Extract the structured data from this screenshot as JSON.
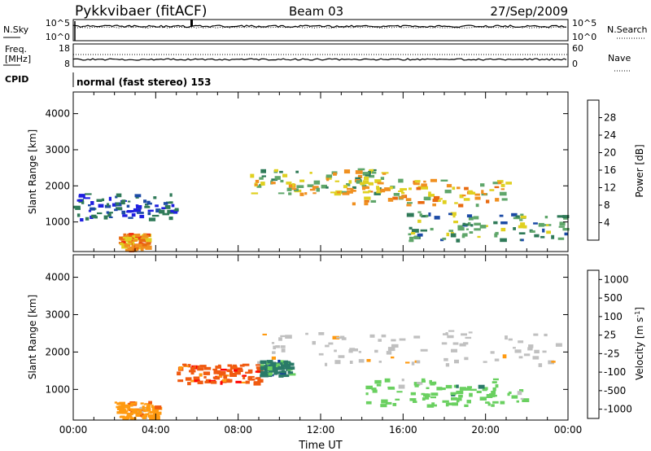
{
  "header": {
    "station": "Pykkvibaer (fitACF)",
    "beam": "Beam 03",
    "date": "27/Sep/2009"
  },
  "strip_panels": {
    "nsky": {
      "label": "N.Sky",
      "ticks": [
        "10^5",
        "10^0"
      ]
    },
    "nsearch": {
      "label": "N.Search",
      "ticks": [
        "10^5",
        "10^0"
      ]
    },
    "freq": {
      "label_line1": "Freq.",
      "label_line2": "[MHz]",
      "ticks": [
        "18",
        "8"
      ]
    },
    "nave": {
      "label": "Nave",
      "ticks": [
        "60",
        "0"
      ]
    },
    "cpid": {
      "label": "CPID",
      "value": "normal (fast stereo) 153"
    }
  },
  "colors": {
    "power": [
      "#1f1fe0",
      "#1c4ba6",
      "#2f7a58",
      "#5fa66a",
      "#e0d020",
      "#f09020",
      "#e86a10",
      "#f03010"
    ],
    "velocity": [
      "#ff0000",
      "#f05a10",
      "#ff9a10",
      "#c0c0c0",
      "#c0c0c0",
      "#6ad060",
      "#2a7a68",
      "#1030a0"
    ]
  },
  "chart_data": [
    {
      "type": "heatmap",
      "title": "",
      "xlabel": "",
      "ylabel": "Slant Range [km]",
      "xlim": [
        "00:00",
        "00:00"
      ],
      "ylim": [
        180,
        4600
      ],
      "y_ticks": [
        "1000",
        "2000",
        "3000",
        "4000"
      ],
      "colorbar": {
        "label": "Power [dB]",
        "ticks": [
          "4",
          "8",
          "12",
          "16",
          "20",
          "24",
          "28"
        ],
        "range": [
          0,
          30
        ]
      },
      "bands": [
        {
          "t_start": 0.0,
          "t_end": 5.0,
          "range_min": 1100,
          "range_max": 1800,
          "value": 8
        },
        {
          "t_start": 2.2,
          "t_end": 3.6,
          "range_min": 250,
          "range_max": 700,
          "value": 26
        },
        {
          "t_start": 8.5,
          "t_end": 15.0,
          "range_min": 1800,
          "range_max": 2500,
          "value": 18
        },
        {
          "t_start": 13.0,
          "t_end": 21.0,
          "range_min": 1500,
          "range_max": 2200,
          "value": 22
        },
        {
          "t_start": 16.0,
          "t_end": 24.0,
          "range_min": 500,
          "range_max": 1300,
          "value": 14
        }
      ]
    },
    {
      "type": "heatmap",
      "title": "",
      "xlabel": "Time UT",
      "ylabel": "Slant Range [km]",
      "xlim": [
        "00:00",
        "00:00"
      ],
      "ylim": [
        180,
        4600
      ],
      "x_ticks": [
        "00:00",
        "04:00",
        "08:00",
        "12:00",
        "16:00",
        "20:00",
        "00:00"
      ],
      "y_ticks": [
        "1000",
        "2000",
        "3000",
        "4000"
      ],
      "colorbar": {
        "label": "Velocity [m s^-1]",
        "ticks": [
          "1000",
          "500",
          "100",
          "25",
          "-25",
          "-100",
          "-500",
          "-1000"
        ]
      },
      "bands": [
        {
          "t_start": 8.5,
          "t_end": 23.5,
          "range_min": 1700,
          "range_max": 2600,
          "value": 0
        },
        {
          "t_start": 5.0,
          "t_end": 9.0,
          "range_min": 1200,
          "range_max": 1700,
          "value": -500
        },
        {
          "t_start": 9.0,
          "t_end": 10.5,
          "range_min": 1400,
          "range_max": 1800,
          "value": 500
        },
        {
          "t_start": 14.0,
          "t_end": 22.0,
          "range_min": 600,
          "range_max": 1300,
          "value": 100
        },
        {
          "t_start": 2.0,
          "t_end": 4.0,
          "range_min": 250,
          "range_max": 700,
          "value": -100
        }
      ]
    }
  ],
  "labels": {
    "power_title": "Power",
    "power_unit": "[dB]",
    "velocity_title": "Velocity",
    "velocity_unit": "[m s",
    "velocity_exp": "-1",
    "velocity_close": "]"
  }
}
